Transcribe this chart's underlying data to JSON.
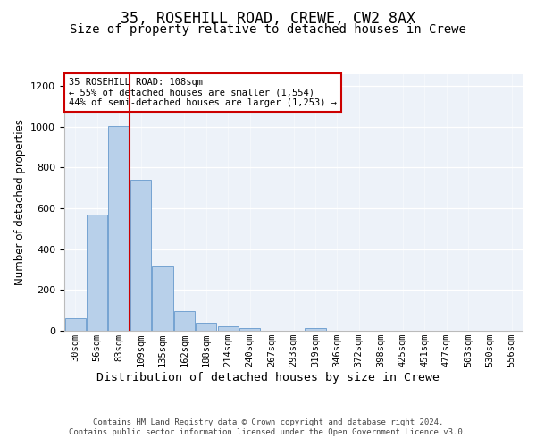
{
  "title1": "35, ROSEHILL ROAD, CREWE, CW2 8AX",
  "title2": "Size of property relative to detached houses in Crewe",
  "xlabel": "Distribution of detached houses by size in Crewe",
  "ylabel": "Number of detached properties",
  "bar_labels": [
    "30sqm",
    "56sqm",
    "83sqm",
    "109sqm",
    "135sqm",
    "162sqm",
    "188sqm",
    "214sqm",
    "240sqm",
    "267sqm",
    "293sqm",
    "319sqm",
    "346sqm",
    "372sqm",
    "398sqm",
    "425sqm",
    "451sqm",
    "477sqm",
    "503sqm",
    "530sqm",
    "556sqm"
  ],
  "bar_values": [
    62,
    570,
    1005,
    740,
    315,
    95,
    38,
    22,
    12,
    0,
    0,
    15,
    0,
    0,
    0,
    0,
    0,
    0,
    0,
    0,
    0
  ],
  "bar_color": "#b8d0ea",
  "bar_edge_color": "#6699cc",
  "annotation_text": "35 ROSEHILL ROAD: 108sqm\n← 55% of detached houses are smaller (1,554)\n44% of semi-detached houses are larger (1,253) →",
  "annotation_box_color": "#ffffff",
  "annotation_box_edge_color": "#cc0000",
  "vline_color": "#cc0000",
  "vline_x_index": 3,
  "ylim": [
    0,
    1260
  ],
  "yticks": [
    0,
    200,
    400,
    600,
    800,
    1000,
    1200
  ],
  "background_color": "#edf2f9",
  "footer_text": "Contains HM Land Registry data © Crown copyright and database right 2024.\nContains public sector information licensed under the Open Government Licence v3.0.",
  "title1_fontsize": 12,
  "title2_fontsize": 10,
  "xlabel_fontsize": 9.5,
  "ylabel_fontsize": 8.5,
  "tick_fontsize": 7.5,
  "annotation_fontsize": 7.5,
  "footer_fontsize": 6.5
}
